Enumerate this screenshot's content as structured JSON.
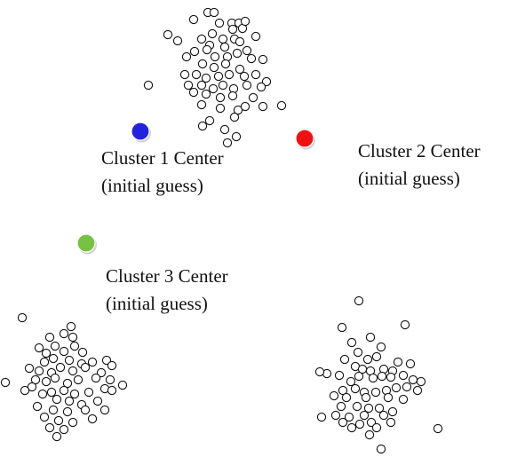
{
  "diagram": {
    "clusters": [
      {
        "center_label": "Cluster 1 Center",
        "guess_label": "(initial guess)",
        "color": "#2222dd",
        "dots": [
          [
            234,
            14
          ],
          [
            241,
            14
          ],
          [
            218,
            22
          ],
          [
            247,
            26
          ],
          [
            261,
            26
          ],
          [
            269,
            26
          ],
          [
            262,
            33
          ],
          [
            273,
            32
          ],
          [
            276,
            24
          ],
          [
            189,
            39
          ],
          [
            239,
            38
          ],
          [
            227,
            44
          ],
          [
            251,
            44
          ],
          [
            264,
            44
          ],
          [
            288,
            41
          ],
          [
            200,
            46
          ],
          [
            236,
            51
          ],
          [
            253,
            53
          ],
          [
            270,
            47
          ],
          [
            219,
            58
          ],
          [
            233,
            56
          ],
          [
            267,
            60
          ],
          [
            278,
            57
          ],
          [
            210,
            64
          ],
          [
            242,
            64
          ],
          [
            256,
            64
          ],
          [
            283,
            66
          ],
          [
            296,
            67
          ],
          [
            228,
            72
          ],
          [
            241,
            76
          ],
          [
            254,
            72
          ],
          [
            270,
            78
          ],
          [
            208,
            84
          ],
          [
            221,
            84
          ],
          [
            232,
            88
          ],
          [
            246,
            86
          ],
          [
            258,
            84
          ],
          [
            275,
            86
          ],
          [
            288,
            84
          ],
          [
            300,
            92
          ],
          [
            212,
            96
          ],
          [
            227,
            96
          ],
          [
            240,
            100
          ],
          [
            251,
            96
          ],
          [
            263,
            100
          ],
          [
            278,
            96
          ],
          [
            294,
            98
          ],
          [
            167,
            96
          ],
          [
            218,
            104
          ],
          [
            232,
            106
          ],
          [
            248,
            110
          ],
          [
            262,
            108
          ],
          [
            285,
            110
          ],
          [
            227,
            118
          ],
          [
            296,
            120
          ],
          [
            317,
            119
          ],
          [
            248,
            122
          ],
          [
            268,
            124
          ],
          [
            276,
            120
          ],
          [
            264,
            132
          ],
          [
            236,
            136
          ],
          [
            228,
            142
          ],
          [
            253,
            146
          ],
          [
            266,
            154
          ],
          [
            256,
            161
          ]
        ]
      },
      {
        "center_label": "Cluster 2 Center",
        "guess_label": "(initial guess)",
        "color": "#ee1111",
        "dots": [
          [
            404,
            339
          ],
          [
            456,
            366
          ],
          [
            385,
            369
          ],
          [
            417,
            380
          ],
          [
            396,
            386
          ],
          [
            429,
            391
          ],
          [
            388,
            405
          ],
          [
            403,
            397
          ],
          [
            414,
            405
          ],
          [
            424,
            402
          ],
          [
            448,
            408
          ],
          [
            462,
            410
          ],
          [
            382,
            423
          ],
          [
            400,
            413
          ],
          [
            408,
            416
          ],
          [
            417,
            418
          ],
          [
            432,
            416
          ],
          [
            442,
            418
          ],
          [
            454,
            423
          ],
          [
            368,
            421
          ],
          [
            395,
            430
          ],
          [
            404,
            424
          ],
          [
            420,
            426
          ],
          [
            430,
            424
          ],
          [
            440,
            425
          ],
          [
            465,
            428
          ],
          [
            474,
            430
          ],
          [
            360,
            419
          ],
          [
            386,
            440
          ],
          [
            400,
            438
          ],
          [
            410,
            442
          ],
          [
            423,
            442
          ],
          [
            435,
            440
          ],
          [
            446,
            437
          ],
          [
            458,
            436
          ],
          [
            470,
            440
          ],
          [
            376,
            446
          ],
          [
            390,
            448
          ],
          [
            412,
            448
          ],
          [
            437,
            448
          ],
          [
            454,
            450
          ],
          [
            384,
            458
          ],
          [
            402,
            458
          ],
          [
            415,
            460
          ],
          [
            427,
            460
          ],
          [
            442,
            464
          ],
          [
            378,
            468
          ],
          [
            393,
            470
          ],
          [
            410,
            468
          ],
          [
            432,
            468
          ],
          [
            362,
            470
          ],
          [
            386,
            476
          ],
          [
            405,
            478
          ],
          [
            418,
            476
          ],
          [
            440,
            476
          ],
          [
            396,
            482
          ],
          [
            424,
            482
          ],
          [
            416,
            490
          ],
          [
            493,
            483
          ],
          [
            429,
            506
          ]
        ]
      },
      {
        "center_label": "Cluster 3 Center",
        "guess_label": "(initial guess)",
        "color": "#77c243",
        "dots": [
          [
            25,
            358
          ],
          [
            72,
            376
          ],
          [
            80,
            368
          ],
          [
            56,
            380
          ],
          [
            82,
            380
          ],
          [
            44,
            392
          ],
          [
            62,
            390
          ],
          [
            84,
            390
          ],
          [
            93,
            397
          ],
          [
            52,
            398
          ],
          [
            72,
            396
          ],
          [
            50,
            408
          ],
          [
            60,
            404
          ],
          [
            78,
            406
          ],
          [
            92,
            410
          ],
          [
            104,
            408
          ],
          [
            120,
            406
          ],
          [
            126,
            412
          ],
          [
            33,
            415
          ],
          [
            44,
            418
          ],
          [
            58,
            420
          ],
          [
            68,
            414
          ],
          [
            82,
            418
          ],
          [
            96,
            414
          ],
          [
            114,
            420
          ],
          [
            40,
            428
          ],
          [
            52,
            430
          ],
          [
            62,
            426
          ],
          [
            76,
            432
          ],
          [
            88,
            428
          ],
          [
            108,
            426
          ],
          [
            124,
            428
          ],
          [
            6,
            431
          ],
          [
            36,
            436
          ],
          [
            58,
            442
          ],
          [
            72,
            440
          ],
          [
            84,
            444
          ],
          [
            100,
            442
          ],
          [
            118,
            438
          ],
          [
            138,
            434
          ],
          [
            48,
            444
          ],
          [
            64,
            450
          ],
          [
            78,
            452
          ],
          [
            92,
            456
          ],
          [
            110,
            452
          ],
          [
            42,
            458
          ],
          [
            60,
            462
          ],
          [
            76,
            464
          ],
          [
            96,
            462
          ],
          [
            118,
            462
          ],
          [
            50,
            470
          ],
          [
            66,
            474
          ],
          [
            82,
            476
          ],
          [
            104,
            472
          ],
          [
            56,
            482
          ],
          [
            72,
            484
          ],
          [
            64,
            492
          ],
          [
            126,
            440
          ],
          [
            28,
            440
          ]
        ]
      }
    ]
  }
}
